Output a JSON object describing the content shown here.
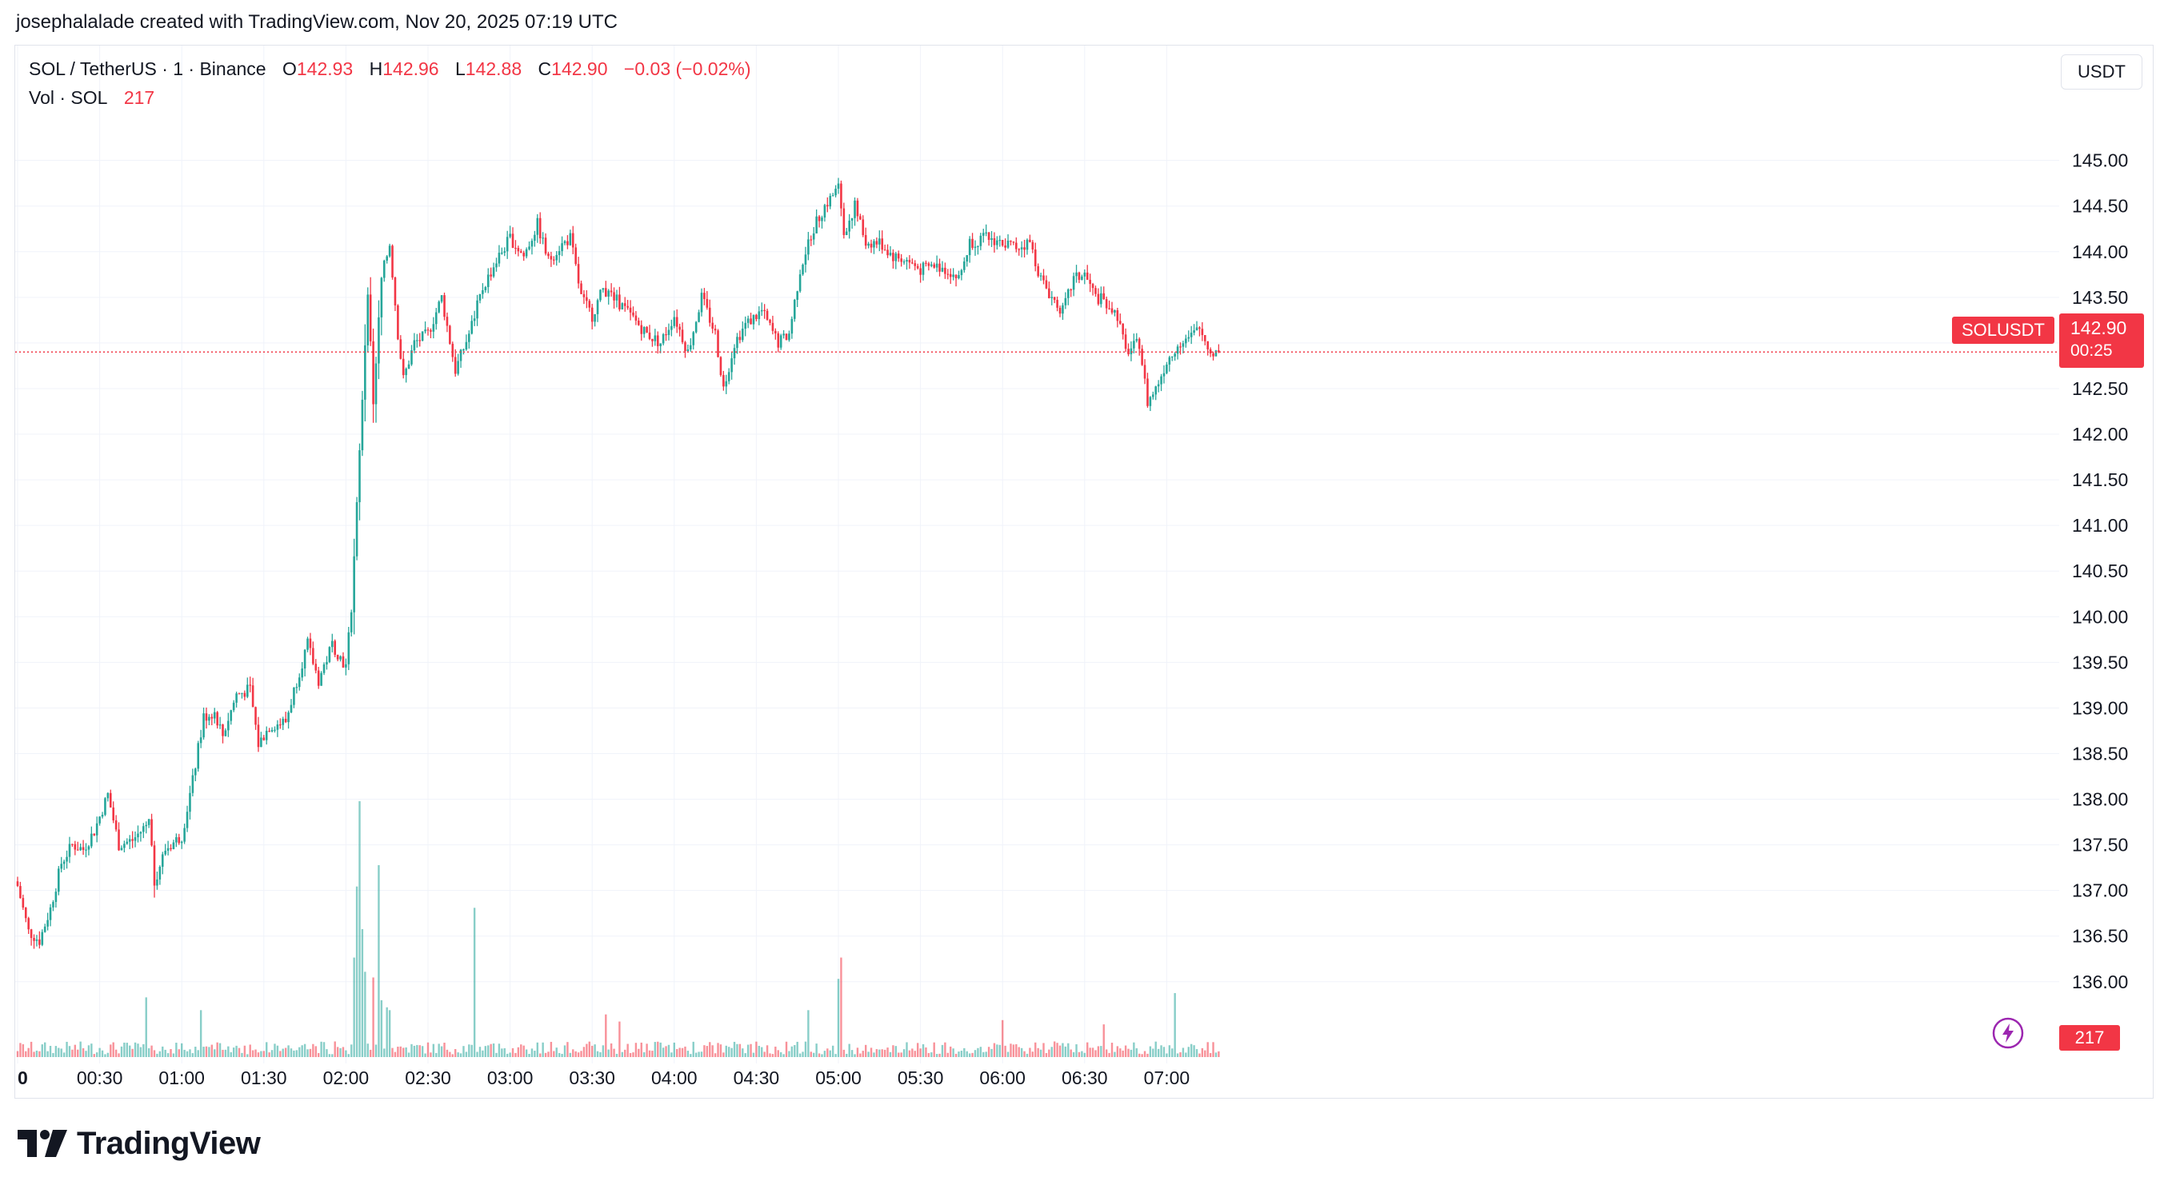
{
  "caption": "josephalalade created with TradingView.com, Nov 20, 2025 07:19 UTC",
  "legend": {
    "symbol": "SOL / TetherUS · 1 · Binance",
    "o_label": "O",
    "o_value": "142.93",
    "h_label": "H",
    "h_value": "142.96",
    "l_label": "L",
    "l_value": "142.88",
    "c_label": "C",
    "c_value": "142.90",
    "change": "−0.03 (−0.02%)",
    "vol_label": "Vol · SOL",
    "vol_value": "217"
  },
  "currency_button": "USDT",
  "price_badge": {
    "ticker": "SOLUSDT",
    "price": "142.90",
    "countdown": "00:25"
  },
  "volume_badge": "217",
  "logo_text": "TradingView",
  "colors": {
    "up": "#26a69a",
    "down": "#f23645",
    "grid": "#f0f3fa",
    "text": "#131722"
  },
  "icons": {
    "bolt": "lightning-bolt-icon",
    "logo": "tradingview-logo-icon"
  },
  "chart_data": {
    "type": "candlestick",
    "symbol": "SOL / TetherUS",
    "interval_minutes": 1,
    "ylim": [
      135.7,
      145.4
    ],
    "y_ticks": [
      "136.00",
      "136.50",
      "137.00",
      "137.50",
      "138.00",
      "138.50",
      "139.00",
      "139.50",
      "140.00",
      "140.50",
      "141.00",
      "141.50",
      "142.00",
      "142.50",
      "143.00",
      "143.50",
      "144.00",
      "144.50",
      "145.00"
    ],
    "x_tick_labels": [
      "0",
      "00:30",
      "01:00",
      "01:30",
      "02:00",
      "02:30",
      "03:00",
      "03:30",
      "04:00",
      "04:30",
      "05:00",
      "05:30",
      "06:00",
      "06:30",
      "07:00"
    ],
    "last_price": 142.9,
    "volume_max": 1800,
    "price_path": [
      [
        "00:00",
        137.05
      ],
      [
        "00:04",
        136.55
      ],
      [
        "00:08",
        136.45
      ],
      [
        "00:12",
        136.8
      ],
      [
        "00:16",
        137.3
      ],
      [
        "00:20",
        137.5
      ],
      [
        "00:24",
        137.45
      ],
      [
        "00:28",
        137.65
      ],
      [
        "00:33",
        138.05
      ],
      [
        "00:37",
        137.5
      ],
      [
        "00:42",
        137.55
      ],
      [
        "00:48",
        137.75
      ],
      [
        "00:50",
        137.1
      ],
      [
        "00:54",
        137.45
      ],
      [
        "01:00",
        137.6
      ],
      [
        "01:04",
        138.2
      ],
      [
        "01:08",
        138.9
      ],
      [
        "01:12",
        138.95
      ],
      [
        "01:15",
        138.7
      ],
      [
        "01:20",
        139.15
      ],
      [
        "01:25",
        139.2
      ],
      [
        "01:28",
        138.6
      ],
      [
        "01:32",
        138.8
      ],
      [
        "01:38",
        138.85
      ],
      [
        "01:42",
        139.3
      ],
      [
        "01:46",
        139.7
      ],
      [
        "01:50",
        139.3
      ],
      [
        "01:55",
        139.7
      ],
      [
        "02:00",
        139.45
      ],
      [
        "02:02",
        140.1
      ],
      [
        "02:04",
        141.2
      ],
      [
        "02:06",
        142.4
      ],
      [
        "02:08",
        143.6
      ],
      [
        "02:10",
        142.3
      ],
      [
        "02:13",
        143.7
      ],
      [
        "02:16",
        144.1
      ],
      [
        "02:19",
        143.1
      ],
      [
        "02:21",
        142.6
      ],
      [
        "02:25",
        143.0
      ],
      [
        "02:30",
        143.1
      ],
      [
        "02:35",
        143.5
      ],
      [
        "02:40",
        142.7
      ],
      [
        "02:45",
        143.1
      ],
      [
        "02:50",
        143.6
      ],
      [
        "02:55",
        143.9
      ],
      [
        "03:00",
        144.15
      ],
      [
        "03:05",
        143.95
      ],
      [
        "03:10",
        144.3
      ],
      [
        "03:14",
        143.9
      ],
      [
        "03:18",
        144.05
      ],
      [
        "03:22",
        144.15
      ],
      [
        "03:26",
        143.5
      ],
      [
        "03:30",
        143.3
      ],
      [
        "03:34",
        143.6
      ],
      [
        "03:38",
        143.5
      ],
      [
        "03:44",
        143.3
      ],
      [
        "03:50",
        143.1
      ],
      [
        "03:55",
        143.0
      ],
      [
        "04:00",
        143.3
      ],
      [
        "04:05",
        142.9
      ],
      [
        "04:10",
        143.5
      ],
      [
        "04:15",
        143.1
      ],
      [
        "04:18",
        142.5
      ],
      [
        "04:22",
        143.0
      ],
      [
        "04:26",
        143.2
      ],
      [
        "04:32",
        143.35
      ],
      [
        "04:38",
        143.0
      ],
      [
        "04:42",
        143.1
      ],
      [
        "04:46",
        143.8
      ],
      [
        "04:50",
        144.2
      ],
      [
        "04:55",
        144.5
      ],
      [
        "05:00",
        144.7
      ],
      [
        "05:02",
        144.2
      ],
      [
        "05:06",
        144.5
      ],
      [
        "05:10",
        144.1
      ],
      [
        "05:15",
        144.1
      ],
      [
        "05:20",
        143.95
      ],
      [
        "05:25",
        143.9
      ],
      [
        "05:30",
        143.8
      ],
      [
        "05:35",
        143.85
      ],
      [
        "05:40",
        143.8
      ],
      [
        "05:44",
        143.7
      ],
      [
        "05:48",
        144.1
      ],
      [
        "05:54",
        144.15
      ],
      [
        "06:00",
        144.1
      ],
      [
        "06:05",
        144.05
      ],
      [
        "06:10",
        144.1
      ],
      [
        "06:14",
        143.7
      ],
      [
        "06:18",
        143.5
      ],
      [
        "06:22",
        143.35
      ],
      [
        "06:26",
        143.7
      ],
      [
        "06:30",
        143.75
      ],
      [
        "06:34",
        143.5
      ],
      [
        "06:38",
        143.45
      ],
      [
        "06:42",
        143.3
      ],
      [
        "06:45",
        142.9
      ],
      [
        "06:50",
        143.0
      ],
      [
        "06:53",
        142.35
      ],
      [
        "06:56",
        142.5
      ],
      [
        "07:00",
        142.8
      ],
      [
        "07:04",
        143.0
      ],
      [
        "07:08",
        143.05
      ],
      [
        "07:12",
        143.15
      ],
      [
        "07:16",
        142.9
      ],
      [
        "07:19",
        142.9
      ]
    ],
    "volume_spikes": [
      [
        "00:47",
        420
      ],
      [
        "01:07",
        330
      ],
      [
        "02:03",
        700
      ],
      [
        "02:04",
        1200
      ],
      [
        "02:05",
        1800
      ],
      [
        "02:06",
        900
      ],
      [
        "02:07",
        600
      ],
      [
        "02:10",
        560
      ],
      [
        "02:12",
        1350
      ],
      [
        "02:13",
        400
      ],
      [
        "02:15",
        350
      ],
      [
        "02:16",
        330
      ],
      [
        "02:47",
        1050
      ],
      [
        "03:35",
        300
      ],
      [
        "03:40",
        250
      ],
      [
        "04:49",
        330
      ],
      [
        "05:00",
        550
      ],
      [
        "05:01",
        700
      ],
      [
        "06:00",
        260
      ],
      [
        "06:37",
        230
      ],
      [
        "07:03",
        450
      ]
    ]
  }
}
